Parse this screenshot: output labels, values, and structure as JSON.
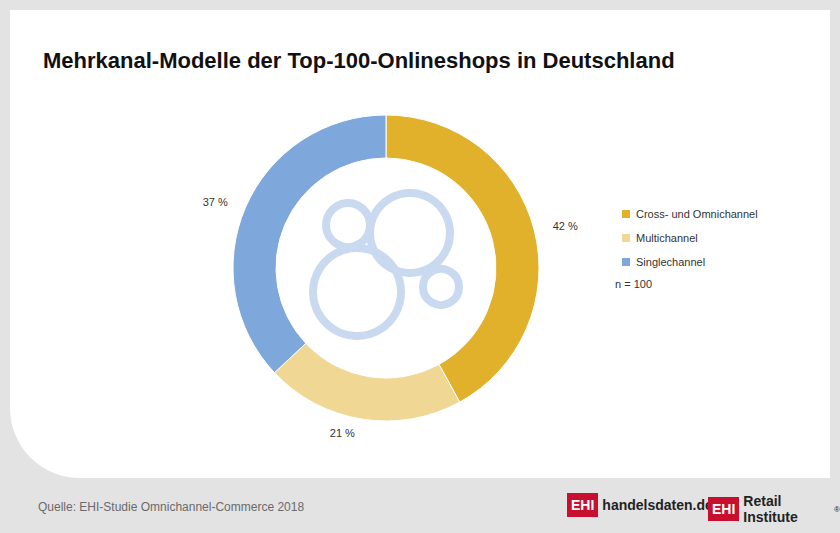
{
  "chart_data": {
    "type": "pie",
    "title": "Mehrkanal-Modelle der Top-100-Onlineshops in Deutschland",
    "categories": [
      "Cross- und Omnichannel",
      "Multichannel",
      "Singlechannel"
    ],
    "values": [
      42,
      21,
      37
    ],
    "value_labels": [
      "42 %",
      "21 %",
      "37 %"
    ],
    "colors": [
      "#e2b12c",
      "#f0d794",
      "#7ea8dc"
    ],
    "data_labels": true,
    "legend": "right",
    "annotations": [
      "n = 100"
    ]
  },
  "footer": {
    "source": "Quelle: EHI-Studie Omnichannel-Commerce 2018",
    "logos": [
      {
        "mark": "EHI",
        "text": "handelsdaten.de"
      },
      {
        "mark": "EHI",
        "text": "Retail Institute",
        "suffix": "®"
      }
    ]
  }
}
